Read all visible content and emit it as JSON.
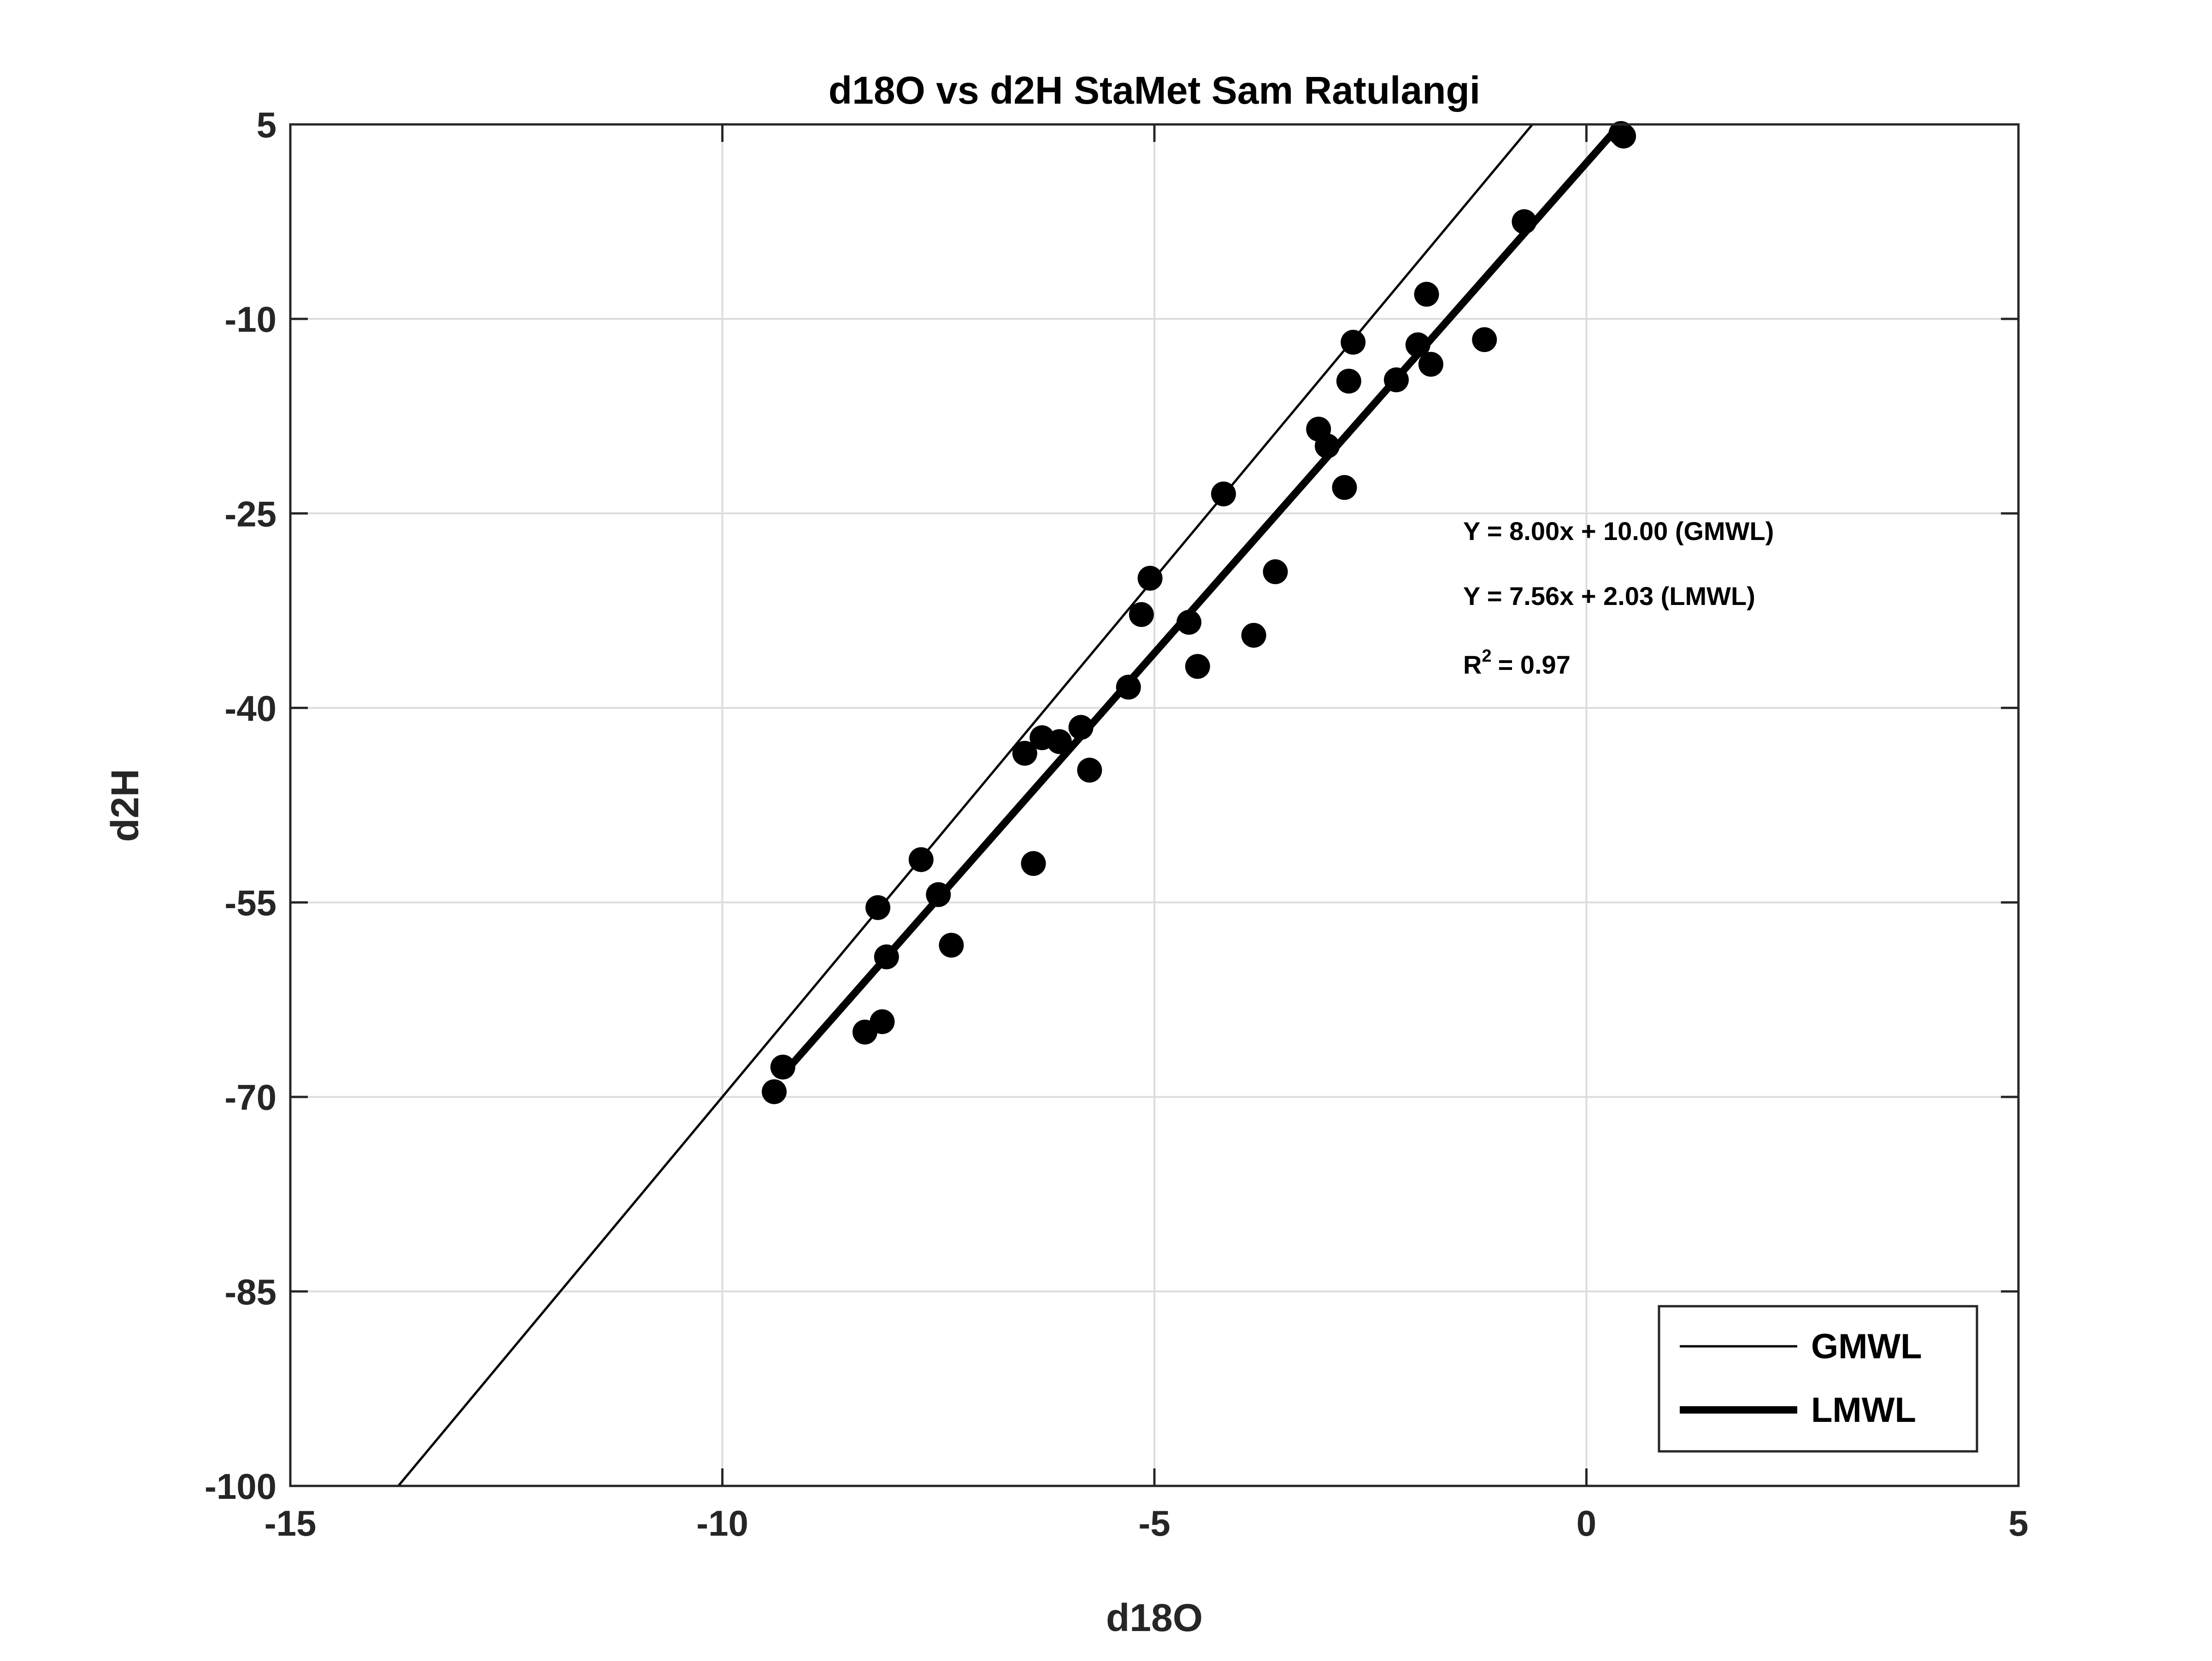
{
  "chart_data": {
    "type": "scatter",
    "title": "d18O vs d2H StaMet Sam Ratulangi",
    "xlabel": "d18O",
    "ylabel": "d2H",
    "xlim": [
      -15,
      5
    ],
    "ylim": [
      -100,
      5
    ],
    "xticks": [
      -15,
      -10,
      -5,
      0,
      5
    ],
    "yticks": [
      -100,
      -85,
      -70,
      -55,
      -40,
      -25,
      -10,
      5
    ],
    "xtick_labels": [
      "-15",
      "-10",
      "-5",
      "0",
      "5"
    ],
    "ytick_labels": [
      "-100",
      "-85",
      "-70",
      "-55",
      "-40",
      "-25",
      "-10",
      "5"
    ],
    "grid": true,
    "legend_position": "bottom-right",
    "points": [
      {
        "x": 0.43,
        "y": 4.1
      },
      {
        "x": 0.4,
        "y": 4.3
      },
      {
        "x": -0.72,
        "y": -2.5
      },
      {
        "x": -1.85,
        "y": -8.1
      },
      {
        "x": -1.18,
        "y": -11.6
      },
      {
        "x": -1.95,
        "y": -12.0
      },
      {
        "x": -1.8,
        "y": -13.5
      },
      {
        "x": -2.7,
        "y": -11.8
      },
      {
        "x": -2.75,
        "y": -14.8
      },
      {
        "x": -2.2,
        "y": -14.7
      },
      {
        "x": -3.1,
        "y": -18.5
      },
      {
        "x": -3.0,
        "y": -19.8
      },
      {
        "x": -2.8,
        "y": -23.0
      },
      {
        "x": -4.2,
        "y": -23.5
      },
      {
        "x": -3.6,
        "y": -29.5
      },
      {
        "x": -5.05,
        "y": -30.0
      },
      {
        "x": -5.15,
        "y": -32.8
      },
      {
        "x": -4.6,
        "y": -33.4
      },
      {
        "x": -3.85,
        "y": -34.4
      },
      {
        "x": -4.5,
        "y": -36.8
      },
      {
        "x": -5.3,
        "y": -38.4
      },
      {
        "x": -5.85,
        "y": -41.5
      },
      {
        "x": -6.3,
        "y": -42.3
      },
      {
        "x": -6.1,
        "y": -42.6
      },
      {
        "x": -6.5,
        "y": -43.5
      },
      {
        "x": -5.75,
        "y": -44.8
      },
      {
        "x": -7.7,
        "y": -51.7
      },
      {
        "x": -6.4,
        "y": -52.0
      },
      {
        "x": -8.2,
        "y": -55.4
      },
      {
        "x": -7.5,
        "y": -54.4
      },
      {
        "x": -7.35,
        "y": -58.3
      },
      {
        "x": -8.1,
        "y": -59.2
      },
      {
        "x": -8.15,
        "y": -64.2
      },
      {
        "x": -8.35,
        "y": -65.0
      },
      {
        "x": -9.3,
        "y": -67.7
      },
      {
        "x": -9.4,
        "y": -69.6
      }
    ],
    "series": [
      {
        "name": "GMWL",
        "slope": 8.0,
        "intercept": 10.0,
        "x": [
          -13.75,
          -0.625
        ],
        "color": "#000000"
      },
      {
        "name": "LMWL",
        "slope": 7.56,
        "intercept": 2.03,
        "x": [
          -9.3,
          0.4
        ],
        "color": "#000000"
      }
    ],
    "annotations": [
      "Y = 8.00x + 10.00 (GMWL)",
      "Y = 7.56x + 2.03 (LMWL)"
    ],
    "r_squared": {
      "label": "R",
      "superscript": "2",
      "value": "= 0.97"
    }
  }
}
